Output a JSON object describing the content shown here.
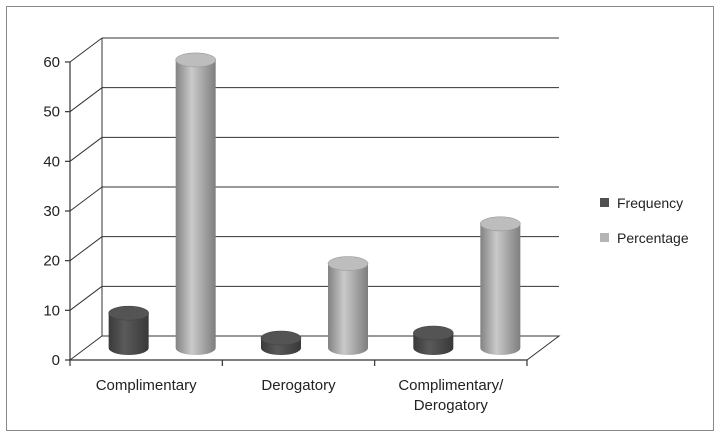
{
  "chart_data": {
    "type": "bar",
    "categories": [
      [
        "Complimentary"
      ],
      [
        "Derogatory"
      ],
      [
        "Complimentary/",
        "Derogatory"
      ]
    ],
    "series": [
      {
        "name": "Frequency",
        "values": [
          7,
          2,
          3
        ],
        "color": "#505050"
      },
      {
        "name": "Percentage",
        "values": [
          58,
          17,
          25
        ],
        "color": "#b4b4b4"
      }
    ],
    "ylim": [
      0,
      60
    ],
    "yticks": [
      "0",
      "10",
      "20",
      "30",
      "40",
      "50",
      "60"
    ],
    "grid": true,
    "legend": "right",
    "three_d": true
  }
}
